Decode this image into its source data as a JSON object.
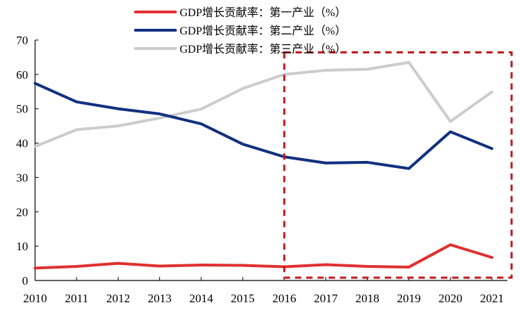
{
  "chart_data": {
    "type": "line",
    "title": "",
    "xlabel": "",
    "ylabel": "",
    "x": [
      2010,
      2011,
      2012,
      2013,
      2014,
      2015,
      2016,
      2017,
      2018,
      2019,
      2020,
      2021
    ],
    "ylim": [
      0,
      70
    ],
    "yticks": [
      0,
      10,
      20,
      30,
      40,
      50,
      60,
      70
    ],
    "grid": false,
    "legend_position": "top-center",
    "series": [
      {
        "name": "GDP增长贡献率：第一产业（%）",
        "color": "#e03030",
        "values": [
          3.6,
          4.1,
          5.0,
          4.2,
          4.5,
          4.4,
          4.0,
          4.6,
          4.1,
          3.9,
          10.4,
          6.7
        ]
      },
      {
        "name": "GDP增长贡献率：第二产业（%）",
        "color": "#13307f",
        "values": [
          57.4,
          52.0,
          50.0,
          48.5,
          45.6,
          39.7,
          36.0,
          34.2,
          34.4,
          32.6,
          43.3,
          38.4
        ]
      },
      {
        "name": "GDP增长贡献率：第三产业（%）",
        "color": "#cccccc",
        "values": [
          39.0,
          43.9,
          45.0,
          47.3,
          49.9,
          55.9,
          60.0,
          61.2,
          61.5,
          63.5,
          46.3,
          54.9
        ]
      }
    ],
    "annotations": [
      {
        "type": "dashed-rectangle",
        "color": "#c0181c",
        "x_from": 2016,
        "x_to": 2021,
        "y_from": 0,
        "y_to": 66,
        "note": "highlight period 2016-2021"
      }
    ]
  }
}
